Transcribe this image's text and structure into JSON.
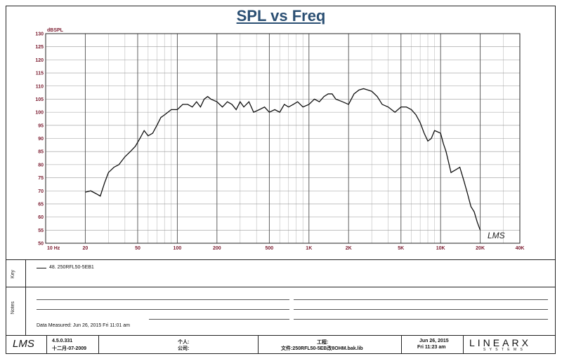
{
  "chart_data": {
    "type": "line",
    "title": "SPL vs Freq",
    "ylabel": "dBSPL",
    "xscale": "log",
    "xlim": [
      10,
      40000
    ],
    "ylim": [
      50,
      130
    ],
    "xticks": [
      10,
      20,
      50,
      100,
      200,
      500,
      1000,
      2000,
      5000,
      10000,
      20000,
      40000
    ],
    "xtick_labels": [
      "10 Hz",
      "20",
      "50",
      "100",
      "200",
      "500",
      "1K",
      "2K",
      "5K",
      "10K",
      "20K",
      "40K"
    ],
    "yticks": [
      50,
      55,
      60,
      65,
      70,
      75,
      80,
      85,
      90,
      95,
      100,
      105,
      110,
      115,
      120,
      125,
      130
    ],
    "grid": true,
    "series": [
      {
        "name": "48. 250RFL50-5EB1",
        "color": "#111111",
        "x": [
          20,
          22,
          24,
          26,
          28,
          30,
          33,
          36,
          40,
          44,
          48,
          52,
          56,
          60,
          65,
          70,
          75,
          80,
          90,
          100,
          110,
          120,
          130,
          140,
          150,
          160,
          170,
          180,
          200,
          220,
          240,
          260,
          280,
          300,
          320,
          350,
          380,
          420,
          460,
          500,
          550,
          600,
          650,
          700,
          760,
          820,
          900,
          1000,
          1100,
          1200,
          1300,
          1400,
          1500,
          1600,
          1800,
          2000,
          2200,
          2400,
          2600,
          2800,
          3000,
          3300,
          3600,
          4000,
          4500,
          5000,
          5500,
          6000,
          6500,
          7000,
          7500,
          8000,
          8500,
          9000,
          9500,
          10000,
          10500,
          11000,
          12000,
          13000,
          14000,
          15000,
          16000,
          17000,
          18000,
          19000,
          20000
        ],
        "y": [
          69.5,
          70,
          69,
          68,
          73,
          77,
          79,
          80,
          83,
          85,
          87,
          90,
          93,
          91,
          92,
          95,
          98,
          99,
          101,
          101,
          103,
          103,
          102,
          104,
          102,
          105,
          106,
          105,
          104,
          102,
          104,
          103,
          101,
          104,
          102,
          104,
          100,
          101,
          102,
          100,
          101,
          100,
          103,
          102,
          103,
          104,
          102,
          103,
          105,
          104,
          106,
          107,
          107,
          105,
          104,
          103,
          107,
          108.5,
          109,
          108.5,
          108,
          106,
          103,
          102,
          100,
          102,
          102,
          101,
          99,
          96,
          92,
          89,
          90,
          93,
          92.5,
          92,
          88,
          85,
          77,
          78,
          79,
          74,
          69,
          64,
          62,
          58,
          55
        ]
      }
    ]
  },
  "watermark": "LMS",
  "legend_side_label": "Key",
  "notes_side_label": "Notes",
  "legend_entry": "48. 250RFL50-5EB1",
  "data_measured": "Data Measured: Jun 26, 2015  Fri 11:01 am",
  "footer": {
    "version": "4.5.0.331",
    "version_date": "十二月-07-2009",
    "user_label": "个人:",
    "company_label": "公司:",
    "project_label": "工程:",
    "file_label": "文件:250RFL50-5EB改8OHM.bak.lib",
    "date": "Jun 26, 2015",
    "time": "Fri 11:23 am",
    "brand": "LINEARX",
    "brand_sub": "S Y S T E M S"
  }
}
